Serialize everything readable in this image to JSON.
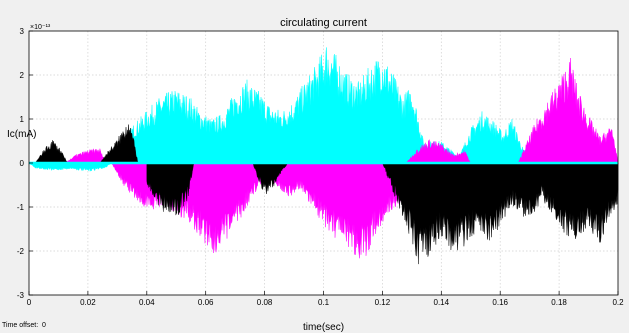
{
  "chart_data": {
    "type": "line",
    "title": "circulating current",
    "xlabel": "time(sec)",
    "ylabel": "Ic(mA)",
    "y_scale_exponent": "×10⁻¹³",
    "xlim": [
      0,
      0.2
    ],
    "ylim": [
      -3,
      3
    ],
    "xticks": [
      "0",
      "0.02",
      "0.04",
      "0.06",
      "0.08",
      "0.1",
      "0.12",
      "0.14",
      "0.16",
      "0.18",
      "0.2"
    ],
    "yticks": [
      "3",
      "2",
      "1",
      "0",
      "-1",
      "-2",
      "-3"
    ],
    "grid": true,
    "time_offset_label": "Time offset:",
    "time_offset_value": "0",
    "series": [
      {
        "color": "#00ffff",
        "upper": [
          [
            0,
            0
          ],
          [
            0.028,
            0
          ],
          [
            0.032,
            0.45
          ],
          [
            0.035,
            0.85
          ],
          [
            0.04,
            1.2
          ],
          [
            0.045,
            1.55
          ],
          [
            0.05,
            1.7
          ],
          [
            0.055,
            1.5
          ],
          [
            0.058,
            1.2
          ],
          [
            0.062,
            1.0
          ],
          [
            0.066,
            1.15
          ],
          [
            0.07,
            1.65
          ],
          [
            0.074,
            1.9
          ],
          [
            0.078,
            1.65
          ],
          [
            0.082,
            1.3
          ],
          [
            0.086,
            1.2
          ],
          [
            0.09,
            1.45
          ],
          [
            0.094,
            1.9
          ],
          [
            0.098,
            2.3
          ],
          [
            0.101,
            2.8
          ],
          [
            0.104,
            2.5
          ],
          [
            0.108,
            2.05
          ],
          [
            0.112,
            1.85
          ],
          [
            0.116,
            2.25
          ],
          [
            0.12,
            2.55
          ],
          [
            0.124,
            2.0
          ],
          [
            0.127,
            1.55
          ],
          [
            0.13,
            1.8
          ],
          [
            0.134,
            0.5
          ],
          [
            0.14,
            0.5
          ],
          [
            0.146,
            0.15
          ],
          [
            0.15,
            0.8
          ],
          [
            0.154,
            1.2
          ],
          [
            0.158,
            0.95
          ],
          [
            0.161,
            0.7
          ],
          [
            0.164,
            1.05
          ],
          [
            0.166,
            0.65
          ],
          [
            0.168,
            0.3
          ],
          [
            0.2,
            0
          ]
        ],
        "lower": [
          [
            0,
            0
          ],
          [
            0.002,
            -0.12
          ],
          [
            0.008,
            -0.18
          ],
          [
            0.014,
            -0.14
          ],
          [
            0.02,
            -0.2
          ],
          [
            0.026,
            -0.12
          ],
          [
            0.028,
            0
          ],
          [
            0.16,
            0
          ],
          [
            0.165,
            -0.35
          ],
          [
            0.172,
            -0.55
          ],
          [
            0.176,
            -0.7
          ],
          [
            0.18,
            -0.5
          ],
          [
            0.186,
            -0.65
          ],
          [
            0.19,
            -0.75
          ],
          [
            0.195,
            -0.4
          ],
          [
            0.2,
            0
          ]
        ]
      },
      {
        "color": "#ff00ff",
        "upper": [
          [
            0.012,
            0
          ],
          [
            0.016,
            0.2
          ],
          [
            0.02,
            0.3
          ],
          [
            0.024,
            0.35
          ],
          [
            0.026,
            0
          ],
          [
            0.128,
            0
          ],
          [
            0.132,
            0.35
          ],
          [
            0.136,
            0.55
          ],
          [
            0.14,
            0.45
          ],
          [
            0.144,
            0.2
          ],
          [
            0.148,
            0.3
          ],
          [
            0.15,
            0
          ],
          [
            0.166,
            0
          ],
          [
            0.172,
            0.95
          ],
          [
            0.176,
            1.45
          ],
          [
            0.18,
            1.9
          ],
          [
            0.184,
            2.45
          ],
          [
            0.186,
            1.8
          ],
          [
            0.19,
            1.1
          ],
          [
            0.194,
            0.6
          ],
          [
            0.198,
            0.9
          ],
          [
            0.2,
            0
          ]
        ],
        "lower": [
          [
            0,
            0
          ],
          [
            0.028,
            0
          ],
          [
            0.032,
            -0.5
          ],
          [
            0.036,
            -0.85
          ],
          [
            0.04,
            -1.15
          ],
          [
            0.046,
            -0.95
          ],
          [
            0.05,
            -1.15
          ],
          [
            0.055,
            -1.45
          ],
          [
            0.06,
            -1.85
          ],
          [
            0.064,
            -2.15
          ],
          [
            0.068,
            -1.7
          ],
          [
            0.072,
            -1.25
          ],
          [
            0.076,
            -0.75
          ],
          [
            0.08,
            -0.35
          ],
          [
            0.084,
            -0.5
          ],
          [
            0.088,
            -0.8
          ],
          [
            0.092,
            -0.6
          ],
          [
            0.096,
            -1.0
          ],
          [
            0.1,
            -1.4
          ],
          [
            0.105,
            -1.85
          ],
          [
            0.11,
            -2.1
          ],
          [
            0.114,
            -2.25
          ],
          [
            0.118,
            -1.6
          ],
          [
            0.122,
            -1.2
          ],
          [
            0.126,
            -0.9
          ],
          [
            0.128,
            0
          ]
        ]
      },
      {
        "color": "#000000",
        "upper": [
          [
            0.002,
            0
          ],
          [
            0.005,
            0.3
          ],
          [
            0.008,
            0.55
          ],
          [
            0.011,
            0.3
          ],
          [
            0.013,
            0
          ],
          [
            0.024,
            0
          ],
          [
            0.027,
            0.3
          ],
          [
            0.03,
            0.55
          ],
          [
            0.034,
            1.05
          ],
          [
            0.036,
            0.4
          ],
          [
            0.037,
            0
          ]
        ],
        "lower": [
          [
            0.04,
            -0.5
          ],
          [
            0.045,
            -1.1
          ],
          [
            0.05,
            -1.25
          ],
          [
            0.054,
            -0.85
          ],
          [
            0.056,
            0
          ],
          [
            0.076,
            0
          ],
          [
            0.078,
            -0.45
          ],
          [
            0.08,
            -0.75
          ],
          [
            0.083,
            -0.55
          ],
          [
            0.086,
            -0.2
          ],
          [
            0.088,
            0
          ],
          [
            0.12,
            0
          ],
          [
            0.124,
            -0.75
          ],
          [
            0.128,
            -1.4
          ],
          [
            0.132,
            -2.35
          ],
          [
            0.136,
            -2.2
          ],
          [
            0.14,
            -1.7
          ],
          [
            0.144,
            -2.05
          ],
          [
            0.148,
            -1.9
          ],
          [
            0.152,
            -1.55
          ],
          [
            0.156,
            -1.85
          ],
          [
            0.16,
            -1.45
          ],
          [
            0.164,
            -0.95
          ],
          [
            0.168,
            -1.25
          ],
          [
            0.172,
            -1.15
          ],
          [
            0.174,
            -0.8
          ],
          [
            0.178,
            -1.2
          ],
          [
            0.182,
            -1.65
          ],
          [
            0.186,
            -1.75
          ],
          [
            0.19,
            -1.5
          ],
          [
            0.194,
            -1.85
          ],
          [
            0.197,
            -1.3
          ],
          [
            0.2,
            -0.9
          ]
        ]
      }
    ]
  }
}
